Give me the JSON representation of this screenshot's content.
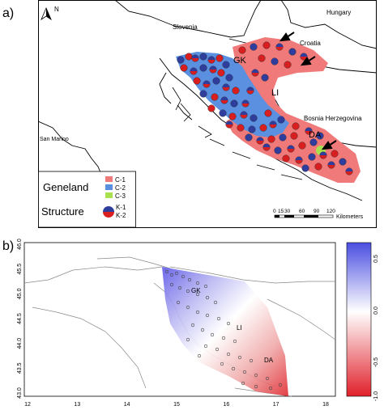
{
  "panel_a": {
    "label": "a)",
    "north_label": "N",
    "countries": [
      {
        "id": "slovenia",
        "name": "Slovenia"
      },
      {
        "id": "hungary",
        "name": "Hungary"
      },
      {
        "id": "croatia",
        "name": "Croatia"
      },
      {
        "id": "bosnia",
        "name": "Bosnia Herzegovina"
      },
      {
        "id": "sanmarino",
        "name": "San Marino"
      }
    ],
    "regions": {
      "gk": "GK",
      "li": "LI",
      "da": "DA"
    },
    "legend": {
      "geneland_title": "Geneland",
      "structure_title": "Structure",
      "geneland_items": [
        {
          "label": "C-1",
          "color": "#f07a7a"
        },
        {
          "label": "C-2",
          "color": "#5b8fe0"
        },
        {
          "label": "C-3",
          "color": "#a9e04f"
        }
      ],
      "structure_items": [
        {
          "label": "K-1",
          "color": "#2f3d9c"
        },
        {
          "label": "K-2",
          "color": "#d81e1e"
        }
      ]
    },
    "scalebar": {
      "ticks": [
        "0",
        "15",
        "30",
        "60",
        "90",
        "120"
      ],
      "unit": "Kilometers"
    }
  },
  "panel_b": {
    "label": "b)",
    "regions": {
      "gk": "GK",
      "li": "LI",
      "da": "DA"
    },
    "x_ticks": [
      "12",
      "13",
      "14",
      "15",
      "16",
      "17",
      "18"
    ],
    "y_ticks": [
      "43.0",
      "43.5",
      "44.0",
      "44.5",
      "45.0",
      "45.5",
      "46.0"
    ],
    "colorbar_ticks": [
      "0.5",
      "0.0",
      "-0.5",
      "-1.0"
    ],
    "colorbar_colors": {
      "top": "#4a4ee0",
      "mid": "#ffffff",
      "bottom": "#e0202a"
    }
  }
}
